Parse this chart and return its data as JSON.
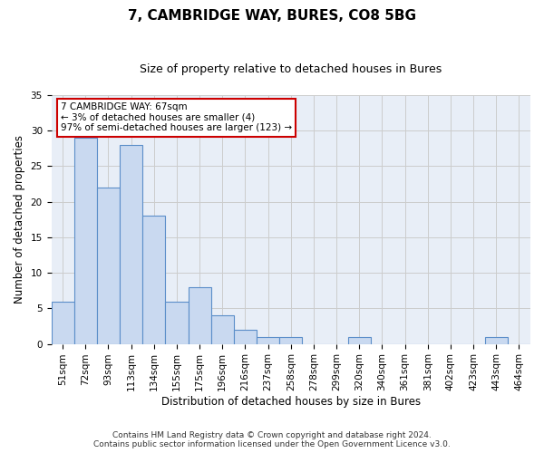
{
  "title": "7, CAMBRIDGE WAY, BURES, CO8 5BG",
  "subtitle": "Size of property relative to detached houses in Bures",
  "xlabel": "Distribution of detached houses by size in Bures",
  "ylabel": "Number of detached properties",
  "categories": [
    "51sqm",
    "72sqm",
    "93sqm",
    "113sqm",
    "134sqm",
    "155sqm",
    "175sqm",
    "196sqm",
    "216sqm",
    "237sqm",
    "258sqm",
    "278sqm",
    "299sqm",
    "320sqm",
    "340sqm",
    "361sqm",
    "381sqm",
    "402sqm",
    "423sqm",
    "443sqm",
    "464sqm"
  ],
  "values": [
    6,
    29,
    22,
    28,
    18,
    6,
    8,
    4,
    2,
    1,
    1,
    0,
    0,
    1,
    0,
    0,
    0,
    0,
    0,
    1,
    0
  ],
  "bar_color": "#c9d9f0",
  "bar_edge_color": "#5b8ec9",
  "highlight_annotation": "7 CAMBRIDGE WAY: 67sqm\n← 3% of detached houses are smaller (4)\n97% of semi-detached houses are larger (123) →",
  "annotation_box_color": "#ffffff",
  "annotation_box_edge_color": "#cc0000",
  "ylim": [
    0,
    35
  ],
  "yticks": [
    0,
    5,
    10,
    15,
    20,
    25,
    30,
    35
  ],
  "grid_color": "#cccccc",
  "bg_color": "#e8eef7",
  "fig_bg_color": "#ffffff",
  "footer_line1": "Contains HM Land Registry data © Crown copyright and database right 2024.",
  "footer_line2": "Contains public sector information licensed under the Open Government Licence v3.0.",
  "title_fontsize": 11,
  "subtitle_fontsize": 9,
  "axis_label_fontsize": 8.5,
  "tick_fontsize": 7.5,
  "annotation_fontsize": 7.5,
  "footer_fontsize": 6.5
}
